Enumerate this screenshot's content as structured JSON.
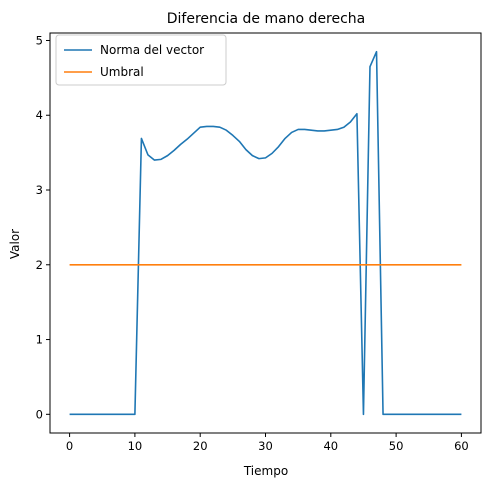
{
  "chart_data": {
    "type": "line",
    "title": "Diferencia de mano derecha",
    "xlabel": "Tiempo",
    "ylabel": "Valor",
    "xlim": [
      -3,
      63
    ],
    "ylim": [
      -0.25,
      5.1
    ],
    "xticks": [
      0,
      10,
      20,
      30,
      40,
      50,
      60
    ],
    "yticks": [
      0,
      1,
      2,
      3,
      4,
      5
    ],
    "grid": false,
    "legend_position": "top-left",
    "series": [
      {
        "name": "Norma del vector",
        "color": "#1f77b4",
        "x": [
          0,
          1,
          2,
          3,
          4,
          5,
          6,
          7,
          8,
          9,
          10,
          11,
          12,
          13,
          14,
          15,
          16,
          17,
          18,
          19,
          20,
          21,
          22,
          23,
          24,
          25,
          26,
          27,
          28,
          29,
          30,
          31,
          32,
          33,
          34,
          35,
          36,
          37,
          38,
          39,
          40,
          41,
          42,
          43,
          44,
          45,
          46,
          47,
          48,
          49,
          50,
          51,
          52,
          53,
          54,
          55,
          56,
          57,
          58,
          59,
          60
        ],
        "y": [
          0,
          0,
          0,
          0,
          0,
          0,
          0,
          0,
          0,
          0,
          0,
          3.69,
          3.47,
          3.4,
          3.41,
          3.46,
          3.53,
          3.61,
          3.68,
          3.76,
          3.84,
          3.85,
          3.85,
          3.84,
          3.8,
          3.73,
          3.65,
          3.54,
          3.46,
          3.42,
          3.43,
          3.49,
          3.58,
          3.69,
          3.77,
          3.81,
          3.81,
          3.8,
          3.79,
          3.79,
          3.8,
          3.81,
          3.84,
          3.91,
          4.02,
          0,
          4.65,
          4.85,
          0,
          0,
          0,
          0,
          0,
          0,
          0,
          0,
          0,
          0,
          0,
          0,
          0
        ]
      },
      {
        "name": "Umbral",
        "color": "#ff7f0e",
        "x": [
          0,
          60
        ],
        "y": [
          2,
          2
        ]
      }
    ]
  }
}
